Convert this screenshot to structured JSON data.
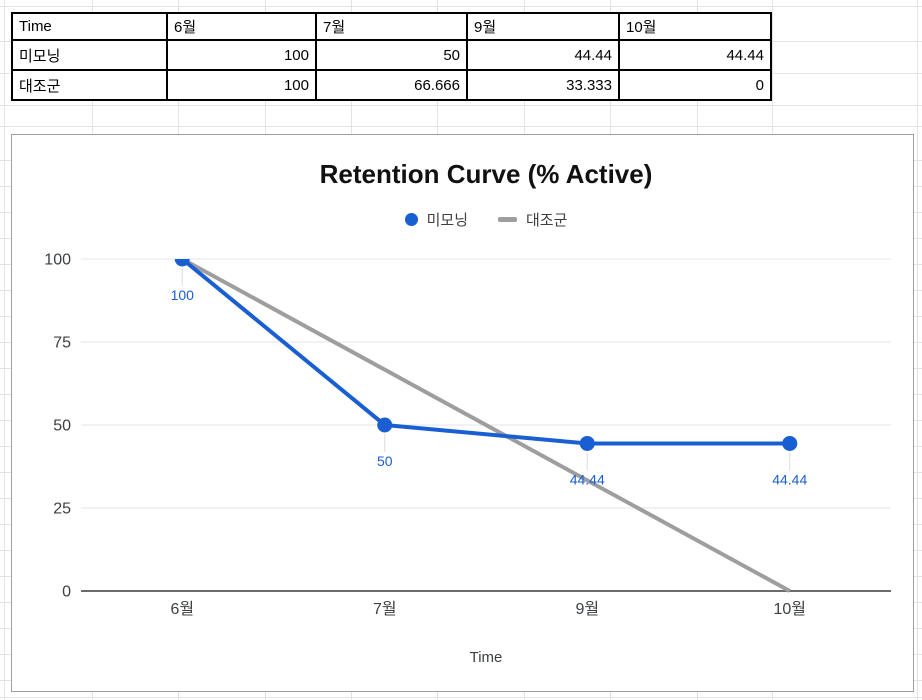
{
  "table": {
    "header": [
      "Time",
      "6월",
      "7월",
      "9월",
      "10월"
    ],
    "rows": [
      {
        "name": "미모닝",
        "values": [
          "100",
          "50",
          "44.44",
          "44.44"
        ]
      },
      {
        "name": "대조군",
        "values": [
          "100",
          "66.666",
          "33.333",
          "0"
        ]
      }
    ]
  },
  "chart_data": {
    "type": "line",
    "title": "Retention Curve (% Active)",
    "xlabel": "Time",
    "categories": [
      "6월",
      "7월",
      "9월",
      "10월"
    ],
    "series": [
      {
        "name": "미모닝",
        "values": [
          100,
          50,
          44.44,
          44.44
        ],
        "color": "#1a5fd2",
        "points": true,
        "data_labels": [
          "100",
          "50",
          "44.44",
          "44.44"
        ]
      },
      {
        "name": "대조군",
        "values": [
          100,
          66.666,
          33.333,
          0
        ],
        "color": "#9e9e9e",
        "points": false,
        "data_labels": null
      }
    ],
    "y_ticks": [
      0,
      25,
      50,
      75,
      100
    ],
    "ylim": [
      0,
      100
    ],
    "legend_position": "top",
    "grid": true
  },
  "colors": {
    "series_blue": "#1a5fd2",
    "series_gray": "#9e9e9e",
    "data_label": "#1a5fd2",
    "gridline": "#e6e6e6",
    "axis_line": "#6b6b6b",
    "tick_text": "#3c4043",
    "leader_line": "#dadada",
    "chart_border": "#9e9e9e",
    "sheet_gridline": "#e3e3e3",
    "table_border": "#000000"
  }
}
